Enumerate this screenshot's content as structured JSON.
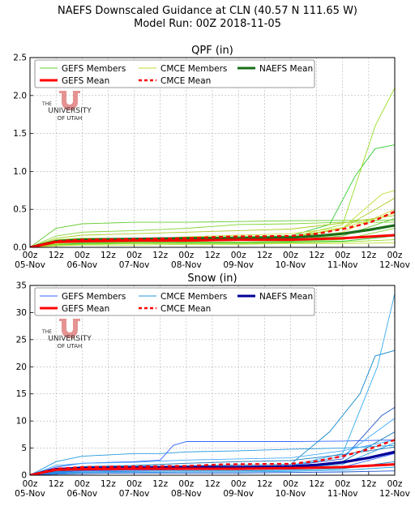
{
  "figure": {
    "title_line1": "NAEFS Downscaled Guidance at CLN (40.57 N 111.65 W)",
    "title_line2": "Model Run: 00Z 2018-11-05",
    "watermark": {
      "line1": "THE",
      "line2": "UNIVERSITY",
      "line3": "OF UTAH",
      "color": "#e08080"
    }
  },
  "chart_data": [
    {
      "type": "line",
      "title": "QPF (in)",
      "xlabel": "",
      "ylabel": "",
      "ylim": [
        0,
        2.5
      ],
      "yticks": [
        "0.0",
        "0.5",
        "1.0",
        "1.5",
        "2.0",
        "2.5"
      ],
      "ytick_values": [
        0,
        0.5,
        1.0,
        1.5,
        2.0,
        2.5
      ],
      "x_range_hours": [
        0,
        168
      ],
      "xticks_top": [
        "00z",
        "12z",
        "00z",
        "12z",
        "00z",
        "12z",
        "00z",
        "12z",
        "00z",
        "12z",
        "00z",
        "12z",
        "00z",
        "12z",
        "00z"
      ],
      "xticks_bottom": [
        "05-Nov",
        "06-Nov",
        "07-Nov",
        "08-Nov",
        "09-Nov",
        "10-Nov",
        "11-Nov",
        "12-Nov"
      ],
      "grid": true,
      "legend_position": "top",
      "legend": [
        {
          "label": "GEFS Members",
          "color": "#66cc33",
          "style": "thin"
        },
        {
          "label": "CMCE Members",
          "color": "#bbdd33",
          "style": "thin"
        },
        {
          "label": "NAEFS Mean",
          "color": "#1a6e1a",
          "style": "thick"
        },
        {
          "label": "GEFS Mean",
          "color": "#ff0000",
          "style": "thick"
        },
        {
          "label": "CMCE Mean",
          "color": "#ff0000",
          "style": "dashed"
        }
      ],
      "member_colors": [
        "#66cc33",
        "#7fd630",
        "#33cc33",
        "#99dd22",
        "#bbdd33",
        "#aacc22",
        "#ccdd44"
      ],
      "members": [
        {
          "x": [
            0,
            12,
            24,
            48,
            72,
            96,
            120,
            168
          ],
          "y": [
            0,
            0.25,
            0.31,
            0.33,
            0.33,
            0.34,
            0.35,
            0.36
          ]
        },
        {
          "x": [
            0,
            12,
            24,
            48,
            72,
            96,
            120,
            144,
            168
          ],
          "y": [
            0,
            0.15,
            0.2,
            0.22,
            0.25,
            0.3,
            0.31,
            0.33,
            0.33
          ]
        },
        {
          "x": [
            0,
            12,
            24,
            48,
            72,
            96,
            120,
            138,
            150,
            159,
            168
          ],
          "y": [
            0,
            0.1,
            0.12,
            0.12,
            0.13,
            0.14,
            0.15,
            0.3,
            0.95,
            1.3,
            1.35
          ]
        },
        {
          "x": [
            0,
            12,
            24,
            48,
            72,
            96,
            120,
            144,
            159,
            168
          ],
          "y": [
            0,
            0.08,
            0.1,
            0.1,
            0.11,
            0.12,
            0.13,
            0.3,
            1.6,
            2.1
          ]
        },
        {
          "x": [
            0,
            12,
            24,
            48,
            72,
            96,
            120,
            144,
            162,
            168
          ],
          "y": [
            0,
            0.1,
            0.12,
            0.12,
            0.12,
            0.13,
            0.14,
            0.25,
            0.7,
            0.75
          ]
        },
        {
          "x": [
            0,
            12,
            24,
            48,
            72,
            96,
            120,
            144,
            168
          ],
          "y": [
            0,
            0.06,
            0.08,
            0.09,
            0.1,
            0.11,
            0.12,
            0.25,
            0.65
          ]
        },
        {
          "x": [
            0,
            12,
            24,
            48,
            72,
            96,
            120,
            144,
            168
          ],
          "y": [
            0,
            0.05,
            0.07,
            0.08,
            0.09,
            0.1,
            0.11,
            0.2,
            0.5
          ]
        },
        {
          "x": [
            0,
            12,
            24,
            48,
            72,
            96,
            120,
            144,
            168
          ],
          "y": [
            0,
            0.04,
            0.06,
            0.07,
            0.08,
            0.09,
            0.1,
            0.15,
            0.38
          ]
        },
        {
          "x": [
            0,
            12,
            24,
            48,
            72,
            96,
            120,
            144,
            168
          ],
          "y": [
            0,
            0.04,
            0.05,
            0.06,
            0.07,
            0.07,
            0.08,
            0.1,
            0.25
          ]
        },
        {
          "x": [
            0,
            12,
            24,
            48,
            72,
            96,
            120,
            144,
            168
          ],
          "y": [
            0,
            0.03,
            0.05,
            0.05,
            0.06,
            0.06,
            0.07,
            0.08,
            0.15
          ]
        },
        {
          "x": [
            0,
            12,
            24,
            48,
            72,
            96,
            120,
            144,
            168
          ],
          "y": [
            0,
            0.03,
            0.04,
            0.05,
            0.05,
            0.05,
            0.06,
            0.07,
            0.1
          ]
        },
        {
          "x": [
            0,
            12,
            24,
            48,
            72,
            96,
            120,
            144,
            168
          ],
          "y": [
            0,
            0.02,
            0.03,
            0.03,
            0.04,
            0.04,
            0.05,
            0.05,
            0.06
          ]
        },
        {
          "x": [
            0,
            12,
            24,
            48,
            72,
            96,
            120,
            144,
            168
          ],
          "y": [
            0,
            0.12,
            0.16,
            0.18,
            0.2,
            0.22,
            0.24,
            0.32,
            0.42
          ]
        },
        {
          "x": [
            0,
            12,
            24,
            48,
            72,
            96,
            120,
            144,
            168
          ],
          "y": [
            0,
            0.07,
            0.09,
            0.1,
            0.14,
            0.16,
            0.18,
            0.26,
            0.45
          ]
        }
      ],
      "means": [
        {
          "name": "NAEFS Mean",
          "color": "#1a6e1a",
          "width": 3.2,
          "dash": "",
          "x": [
            0,
            12,
            24,
            48,
            72,
            96,
            120,
            132,
            144,
            156,
            168
          ],
          "y": [
            0,
            0.08,
            0.1,
            0.11,
            0.12,
            0.12,
            0.13,
            0.15,
            0.18,
            0.23,
            0.29
          ]
        },
        {
          "name": "GEFS Mean",
          "color": "#ff0000",
          "width": 3,
          "dash": "",
          "x": [
            0,
            12,
            24,
            48,
            72,
            96,
            120,
            144,
            168
          ],
          "y": [
            0,
            0.07,
            0.08,
            0.09,
            0.09,
            0.1,
            0.1,
            0.12,
            0.16
          ]
        },
        {
          "name": "CMCE Mean",
          "color": "#ff0000",
          "width": 2.4,
          "dash": "5,4",
          "x": [
            0,
            12,
            24,
            48,
            72,
            90,
            120,
            132,
            144,
            156,
            168
          ],
          "y": [
            0,
            0.08,
            0.1,
            0.11,
            0.12,
            0.14,
            0.15,
            0.18,
            0.24,
            0.32,
            0.47
          ]
        }
      ]
    },
    {
      "type": "line",
      "title": "Snow (in)",
      "xlabel": "",
      "ylabel": "",
      "ylim": [
        0,
        35
      ],
      "yticks": [
        "0",
        "5",
        "10",
        "15",
        "20",
        "25",
        "30",
        "35"
      ],
      "ytick_values": [
        0,
        5,
        10,
        15,
        20,
        25,
        30,
        35
      ],
      "x_range_hours": [
        0,
        168
      ],
      "xticks_top": [
        "00z",
        "12z",
        "00z",
        "12z",
        "00z",
        "12z",
        "00z",
        "12z",
        "00z",
        "12z",
        "00z",
        "12z",
        "00z",
        "12z",
        "00z"
      ],
      "xticks_bottom": [
        "05-Nov",
        "06-Nov",
        "07-Nov",
        "08-Nov",
        "09-Nov",
        "10-Nov",
        "11-Nov",
        "12-Nov"
      ],
      "grid": true,
      "legend_position": "top",
      "legend": [
        {
          "label": "GEFS Members",
          "color": "#3366ff",
          "style": "thin"
        },
        {
          "label": "CMCE Members",
          "color": "#2299dd",
          "style": "thin"
        },
        {
          "label": "NAEFS Mean",
          "color": "#000099",
          "style": "thick"
        },
        {
          "label": "GEFS Mean",
          "color": "#ff0000",
          "style": "thick"
        },
        {
          "label": "CMCE Mean",
          "color": "#ff0000",
          "style": "dashed"
        }
      ],
      "member_colors": [
        "#2299dd",
        "#3366ff",
        "#1188cc",
        "#33aaee",
        "#2255cc",
        "#44aaff",
        "#1177bb"
      ],
      "members": [
        {
          "x": [
            0,
            12,
            24,
            48,
            60,
            72,
            96,
            120,
            144,
            168
          ],
          "y": [
            0,
            2.5,
            3.5,
            4,
            4,
            4.3,
            4.5,
            4.8,
            5,
            5.5
          ]
        },
        {
          "x": [
            0,
            12,
            24,
            48,
            60,
            66,
            72,
            96,
            120,
            144,
            168
          ],
          "y": [
            0,
            1.5,
            2.2,
            2.5,
            2.8,
            5.5,
            6.2,
            6.2,
            6.2,
            6.3,
            6.5
          ]
        },
        {
          "x": [
            0,
            12,
            24,
            48,
            72,
            96,
            120,
            138,
            152,
            159,
            168
          ],
          "y": [
            0,
            1.2,
            1.5,
            1.6,
            1.7,
            1.9,
            2,
            8,
            15,
            22,
            23
          ]
        },
        {
          "x": [
            0,
            12,
            24,
            48,
            72,
            96,
            120,
            144,
            160,
            168
          ],
          "y": [
            0,
            1,
            1.3,
            1.4,
            1.5,
            1.6,
            1.8,
            4,
            20,
            33.5
          ]
        },
        {
          "x": [
            0,
            12,
            24,
            48,
            72,
            96,
            120,
            144,
            162,
            168
          ],
          "y": [
            0,
            1,
            1.3,
            1.4,
            1.5,
            1.6,
            1.8,
            3,
            11,
            12.5
          ]
        },
        {
          "x": [
            0,
            12,
            24,
            48,
            72,
            96,
            120,
            144,
            168
          ],
          "y": [
            0,
            0.9,
            1.2,
            1.3,
            1.4,
            1.5,
            1.7,
            3.5,
            10.5
          ]
        },
        {
          "x": [
            0,
            12,
            24,
            48,
            72,
            96,
            120,
            144,
            168
          ],
          "y": [
            0,
            0.7,
            1,
            1.1,
            1.2,
            1.3,
            1.4,
            2.5,
            8
          ]
        },
        {
          "x": [
            0,
            12,
            24,
            48,
            72,
            96,
            120,
            144,
            168
          ],
          "y": [
            0,
            0.6,
            0.9,
            1,
            1.1,
            1.2,
            1.3,
            2,
            6
          ]
        },
        {
          "x": [
            0,
            12,
            24,
            48,
            72,
            96,
            120,
            144,
            168
          ],
          "y": [
            0,
            0.5,
            0.8,
            0.9,
            1,
            1,
            1.1,
            1.5,
            4
          ]
        },
        {
          "x": [
            0,
            12,
            24,
            48,
            72,
            96,
            120,
            144,
            168
          ],
          "y": [
            0,
            0.4,
            0.6,
            0.7,
            0.8,
            0.8,
            0.9,
            1.2,
            2.5
          ]
        },
        {
          "x": [
            0,
            12,
            24,
            48,
            72,
            96,
            120,
            144,
            168
          ],
          "y": [
            0,
            0.3,
            0.5,
            0.5,
            0.6,
            0.6,
            0.7,
            0.9,
            1.5
          ]
        },
        {
          "x": [
            0,
            12,
            24,
            48,
            72,
            96,
            120,
            144,
            168
          ],
          "y": [
            0,
            0.2,
            0.3,
            0.4,
            0.4,
            0.4,
            0.5,
            0.6,
            0.8
          ]
        },
        {
          "x": [
            0,
            12,
            24,
            48,
            72,
            96,
            120,
            144,
            168
          ],
          "y": [
            0,
            1.8,
            2.2,
            2.4,
            2.8,
            3,
            3.2,
            4.5,
            6.5
          ]
        },
        {
          "x": [
            0,
            12,
            24,
            48,
            72,
            96,
            120,
            144,
            168
          ],
          "y": [
            0,
            1.1,
            1.6,
            1.8,
            2.2,
            2.5,
            2.7,
            3.8,
            5.2
          ]
        }
      ],
      "means": [
        {
          "name": "NAEFS Mean",
          "color": "#000099",
          "width": 3.2,
          "dash": "",
          "x": [
            0,
            12,
            24,
            48,
            72,
            96,
            120,
            132,
            144,
            156,
            168
          ],
          "y": [
            0,
            1.1,
            1.3,
            1.4,
            1.5,
            1.5,
            1.6,
            1.9,
            2.4,
            3.2,
            4.3
          ]
        },
        {
          "name": "GEFS Mean",
          "color": "#ff0000",
          "width": 3,
          "dash": "",
          "x": [
            0,
            12,
            24,
            48,
            72,
            96,
            120,
            144,
            168
          ],
          "y": [
            0,
            1,
            1.1,
            1.2,
            1.2,
            1.2,
            1.3,
            1.5,
            2
          ]
        },
        {
          "name": "CMCE Mean",
          "color": "#ff0000",
          "width": 2.4,
          "dash": "5,4",
          "x": [
            0,
            12,
            24,
            48,
            72,
            90,
            120,
            132,
            144,
            156,
            168
          ],
          "y": [
            0,
            1.2,
            1.5,
            1.6,
            1.7,
            2,
            2.1,
            2.6,
            3.5,
            4.8,
            6.5
          ]
        }
      ]
    }
  ]
}
